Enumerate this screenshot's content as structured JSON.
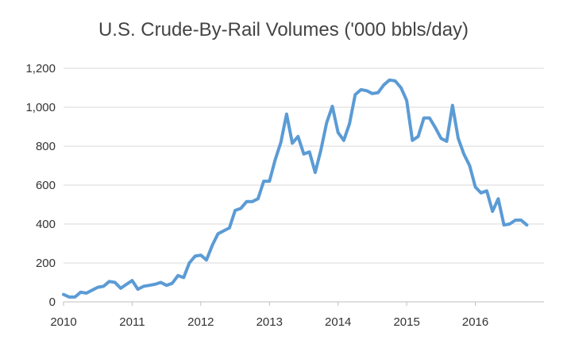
{
  "chart_data": {
    "type": "line",
    "title": "U.S. Crude-By-Rail Volumes ('000 bbls/day)",
    "xlabel": "",
    "ylabel": "",
    "xlim": [
      2010,
      2016.75
    ],
    "ylim": [
      0,
      1200
    ],
    "x_ticks": [
      2010,
      2011,
      2012,
      2013,
      2014,
      2015,
      2016
    ],
    "y_ticks": [
      0,
      200,
      400,
      600,
      800,
      1000,
      1200
    ],
    "y_tick_labels": [
      "0",
      "200",
      "400",
      "600",
      "800",
      "1,000",
      "1,200"
    ],
    "grid": "horizontal",
    "legend": "none",
    "series_color": "#5b9bd5",
    "x": [
      2010.0,
      2010.083,
      2010.167,
      2010.25,
      2010.333,
      2010.417,
      2010.5,
      2010.583,
      2010.667,
      2010.75,
      2010.833,
      2010.917,
      2011.0,
      2011.083,
      2011.167,
      2011.25,
      2011.333,
      2011.417,
      2011.5,
      2011.583,
      2011.667,
      2011.75,
      2011.833,
      2011.917,
      2012.0,
      2012.083,
      2012.167,
      2012.25,
      2012.333,
      2012.417,
      2012.5,
      2012.583,
      2012.667,
      2012.75,
      2012.833,
      2012.917,
      2013.0,
      2013.083,
      2013.167,
      2013.25,
      2013.333,
      2013.417,
      2013.5,
      2013.583,
      2013.667,
      2013.75,
      2013.833,
      2013.917,
      2014.0,
      2014.083,
      2014.167,
      2014.25,
      2014.333,
      2014.417,
      2014.5,
      2014.583,
      2014.667,
      2014.75,
      2014.833,
      2014.917,
      2015.0,
      2015.083,
      2015.167,
      2015.25,
      2015.333,
      2015.417,
      2015.5,
      2015.583,
      2015.667,
      2015.75,
      2015.833,
      2015.917,
      2016.0,
      2016.083,
      2016.167,
      2016.25,
      2016.333,
      2016.417,
      2016.5,
      2016.583,
      2016.667,
      2016.75
    ],
    "y": [
      38,
      25,
      25,
      50,
      45,
      60,
      75,
      80,
      105,
      100,
      70,
      90,
      110,
      65,
      80,
      85,
      90,
      100,
      85,
      95,
      135,
      125,
      200,
      235,
      240,
      215,
      290,
      350,
      365,
      380,
      470,
      480,
      515,
      515,
      530,
      620,
      620,
      730,
      820,
      965,
      815,
      850,
      760,
      770,
      665,
      780,
      920,
      1005,
      870,
      830,
      915,
      1065,
      1090,
      1085,
      1070,
      1075,
      1115,
      1140,
      1135,
      1100,
      1035,
      830,
      850,
      945,
      945,
      895,
      840,
      825,
      1010,
      840,
      760,
      700,
      590,
      560,
      570,
      465,
      530,
      395,
      400,
      420,
      420,
      395
    ]
  }
}
